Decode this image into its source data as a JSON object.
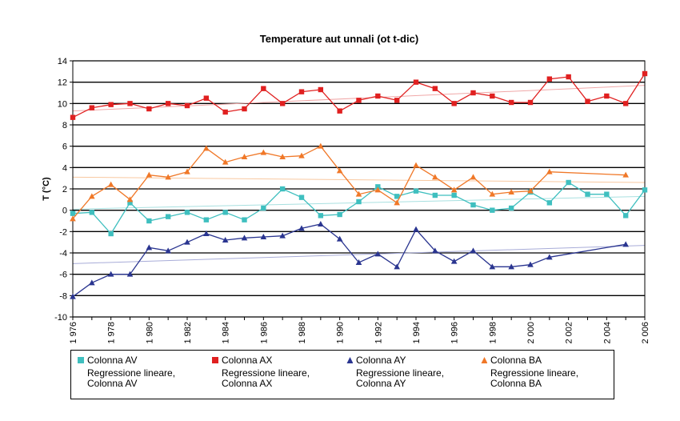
{
  "chart_data": {
    "type": "line",
    "title": "Temperature aut unnali (ot t-dic)",
    "ylabel": "T (°C)",
    "xlabel": "",
    "ylim": [
      -10,
      14
    ],
    "yticks": [
      "14",
      "12",
      "10",
      "8",
      "6",
      "4",
      "2",
      "0",
      "-2",
      "-4",
      "-6",
      "-8",
      "-10"
    ],
    "xlim": [
      1976,
      2006
    ],
    "xticks": [
      "1 976",
      "1 978",
      "1 980",
      "1 982",
      "1 984",
      "1 986",
      "1 988",
      "1 990",
      "1 992",
      "1 994",
      "1 996",
      "1 998",
      "2 000",
      "2 002",
      "2 004",
      "2 006"
    ],
    "grid": true,
    "legend_position": "bottom",
    "series": [
      {
        "name": "Colonna AV",
        "color": "#3fbfbf",
        "marker": "square",
        "x": [
          1976,
          1977,
          1978,
          1979,
          1980,
          1981,
          1982,
          1983,
          1984,
          1985,
          1986,
          1987,
          1988,
          1989,
          1990,
          1991,
          1992,
          1993,
          1994,
          1995,
          1996,
          1997,
          1998,
          1999,
          2000,
          2001,
          2002,
          2003,
          2004,
          2005,
          2006
        ],
        "values": [
          -0.3,
          -0.2,
          -2.2,
          0.7,
          -1.0,
          -0.6,
          -0.2,
          -0.9,
          -0.2,
          -0.9,
          0.2,
          2.0,
          1.2,
          -0.5,
          -0.4,
          0.8,
          2.2,
          1.3,
          1.8,
          1.4,
          1.4,
          0.5,
          0.0,
          0.2,
          1.7,
          0.7,
          2.6,
          1.5,
          1.5,
          -0.5,
          1.9
        ]
      },
      {
        "name": "Colonna AX",
        "color": "#e02020",
        "marker": "square",
        "x": [
          1976,
          1977,
          1978,
          1979,
          1980,
          1981,
          1982,
          1983,
          1984,
          1985,
          1986,
          1987,
          1988,
          1989,
          1990,
          1991,
          1992,
          1993,
          1994,
          1995,
          1996,
          1997,
          1998,
          1999,
          2000,
          2001,
          2002,
          2003,
          2004,
          2005,
          2006
        ],
        "values": [
          8.7,
          9.6,
          9.9,
          10.0,
          9.5,
          10.0,
          9.8,
          10.5,
          9.2,
          9.5,
          11.4,
          10.0,
          11.1,
          11.3,
          9.3,
          10.3,
          10.7,
          10.3,
          12.0,
          11.4,
          10.0,
          11.0,
          10.7,
          10.1,
          10.1,
          12.3,
          12.5,
          10.2,
          10.7,
          10.0,
          12.8
        ]
      },
      {
        "name": "Colonna AY",
        "color": "#2a3590",
        "marker": "triangle",
        "x": [
          1976,
          1977,
          1978,
          1979,
          1980,
          1981,
          1982,
          1983,
          1984,
          1985,
          1986,
          1987,
          1988,
          1989,
          1990,
          1991,
          1992,
          1993,
          1994,
          1995,
          1996,
          1997,
          1998,
          1999,
          2000,
          2001,
          2005
        ],
        "values": [
          -8.1,
          -6.8,
          -6.0,
          -6.0,
          -3.5,
          -3.8,
          -3.0,
          -2.2,
          -2.8,
          -2.6,
          -2.5,
          -2.4,
          -1.7,
          -1.3,
          -2.7,
          -4.9,
          -4.1,
          -5.3,
          -1.8,
          -3.8,
          -4.8,
          -3.8,
          -5.3,
          -5.3,
          -5.1,
          -4.4,
          -3.2
        ]
      },
      {
        "name": "Colonna BA",
        "color": "#f07828",
        "marker": "triangle",
        "x": [
          1976,
          1977,
          1978,
          1979,
          1980,
          1981,
          1982,
          1983,
          1984,
          1985,
          1986,
          1987,
          1988,
          1989,
          1990,
          1991,
          1992,
          1993,
          1994,
          1995,
          1996,
          1997,
          1998,
          1999,
          2000,
          2001,
          2005
        ],
        "values": [
          -0.8,
          1.3,
          2.4,
          1.0,
          3.3,
          3.1,
          3.6,
          5.8,
          4.5,
          5.0,
          5.4,
          5.0,
          5.1,
          6.0,
          3.7,
          1.5,
          1.9,
          0.7,
          4.2,
          3.1,
          1.9,
          3.1,
          1.5,
          1.7,
          1.8,
          3.6,
          3.3
        ]
      }
    ],
    "trendlines": [
      {
        "name": "Regressione lineare, Colonna AV",
        "color": "#a8e0e0",
        "start": 0.1,
        "end": 1.3
      },
      {
        "name": "Regressione lineare, Colonna AX",
        "color": "#f0a8a8",
        "start": 9.3,
        "end": 11.7
      },
      {
        "name": "Regressione lineare, Colonna AY",
        "color": "#a8acd8",
        "start": -5.0,
        "end": -3.3
      },
      {
        "name": "Regressione lineare, Colonna BA",
        "color": "#f8c8a0",
        "start": 3.1,
        "end": 2.6
      }
    ]
  }
}
